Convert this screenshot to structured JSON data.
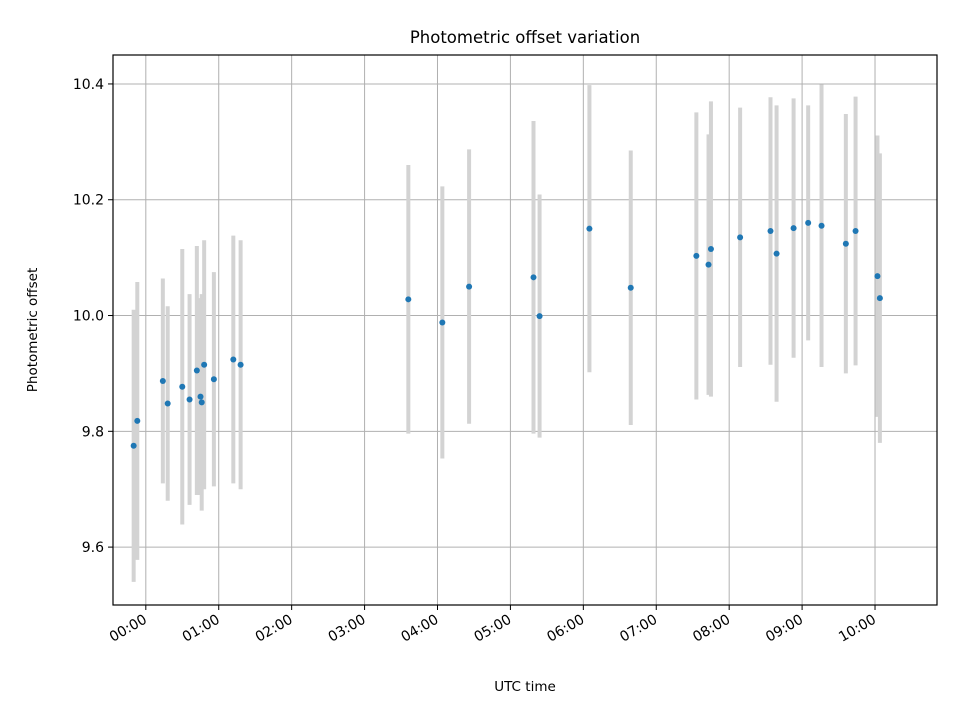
{
  "chart_data": {
    "type": "scatter",
    "title": "Photometric offset variation",
    "xlabel": "UTC time",
    "ylabel": "Photometric offset",
    "xlim": [
      "23:33",
      "10:51"
    ],
    "ylim": [
      9.5,
      10.45
    ],
    "x_ticks": [
      "00:00",
      "01:00",
      "02:00",
      "03:00",
      "04:00",
      "05:00",
      "06:00",
      "07:00",
      "08:00",
      "09:00",
      "10:00"
    ],
    "y_ticks": [
      "9.6",
      "9.8",
      "10.0",
      "10.2",
      "10.4"
    ],
    "grid": true,
    "point_color": "#1f77b4",
    "errorbar_color": "#d3d3d3",
    "points": [
      {
        "x": "23:50",
        "y": 9.775,
        "err": 0.235
      },
      {
        "x": "23:53",
        "y": 9.818,
        "err": 0.24
      },
      {
        "x": "00:14",
        "y": 9.887,
        "err": 0.177
      },
      {
        "x": "00:18",
        "y": 9.848,
        "err": 0.168
      },
      {
        "x": "00:30",
        "y": 9.877,
        "err": 0.238
      },
      {
        "x": "00:36",
        "y": 9.855,
        "err": 0.182
      },
      {
        "x": "00:42",
        "y": 9.905,
        "err": 0.215
      },
      {
        "x": "00:45",
        "y": 9.86,
        "err": 0.17
      },
      {
        "x": "00:46",
        "y": 9.85,
        "err": 0.187
      },
      {
        "x": "00:48",
        "y": 9.915,
        "err": 0.215
      },
      {
        "x": "00:56",
        "y": 9.89,
        "err": 0.185
      },
      {
        "x": "01:12",
        "y": 9.924,
        "err": 0.214
      },
      {
        "x": "01:18",
        "y": 9.915,
        "err": 0.215
      },
      {
        "x": "03:36",
        "y": 10.028,
        "err": 0.232
      },
      {
        "x": "04:04",
        "y": 9.988,
        "err": 0.235
      },
      {
        "x": "04:26",
        "y": 10.05,
        "err": 0.237
      },
      {
        "x": "05:19",
        "y": 10.066,
        "err": 0.27
      },
      {
        "x": "05:24",
        "y": 9.999,
        "err": 0.21
      },
      {
        "x": "06:05",
        "y": 10.15,
        "err": 0.248
      },
      {
        "x": "06:39",
        "y": 10.048,
        "err": 0.237
      },
      {
        "x": "07:33",
        "y": 10.103,
        "err": 0.248
      },
      {
        "x": "07:43",
        "y": 10.088,
        "err": 0.225
      },
      {
        "x": "07:45",
        "y": 10.115,
        "err": 0.255
      },
      {
        "x": "08:09",
        "y": 10.135,
        "err": 0.224
      },
      {
        "x": "08:34",
        "y": 10.146,
        "err": 0.231
      },
      {
        "x": "08:39",
        "y": 10.107,
        "err": 0.256
      },
      {
        "x": "08:53",
        "y": 10.151,
        "err": 0.224
      },
      {
        "x": "09:05",
        "y": 10.16,
        "err": 0.203
      },
      {
        "x": "09:16",
        "y": 10.155,
        "err": 0.244
      },
      {
        "x": "09:36",
        "y": 10.124,
        "err": 0.224
      },
      {
        "x": "09:44",
        "y": 10.146,
        "err": 0.232
      },
      {
        "x": "10:02",
        "y": 10.068,
        "err": 0.243
      },
      {
        "x": "10:04",
        "y": 10.03,
        "err": 0.25
      }
    ]
  }
}
